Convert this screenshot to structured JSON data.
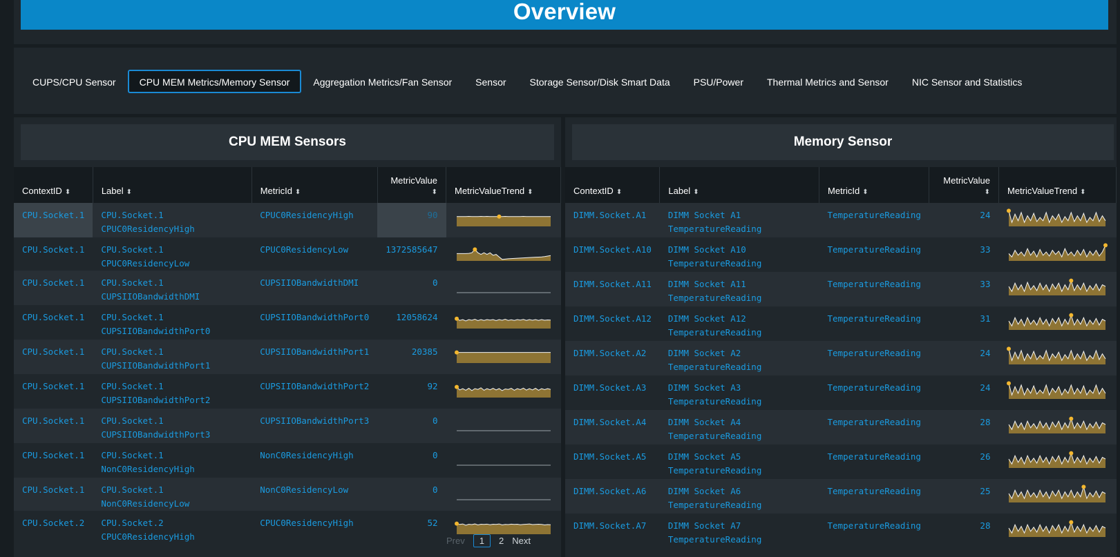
{
  "banner": {
    "title": "Overview"
  },
  "tabs": [
    {
      "label": "CUPS/CPU Sensor",
      "active": false
    },
    {
      "label": "CPU MEM Metrics/Memory Sensor",
      "active": true
    },
    {
      "label": "Aggregation Metrics/Fan Sensor",
      "active": false
    },
    {
      "label": "Sensor",
      "active": false
    },
    {
      "label": "Storage Sensor/Disk Smart Data",
      "active": false
    },
    {
      "label": "PSU/Power",
      "active": false
    },
    {
      "label": "Thermal Metrics and Sensor",
      "active": false
    },
    {
      "label": "NIC Sensor and Statistics",
      "active": false
    }
  ],
  "colors": {
    "accent": "#0a87c8",
    "link": "#1a9be0",
    "spark_fill": "#8e7434",
    "spark_marker": "#f3b72f"
  },
  "left_panel": {
    "title": "CPU MEM Sensors",
    "columns": [
      "ContextID",
      "Label",
      "MetricId",
      "MetricValue",
      "MetricValueTrend"
    ],
    "rows": [
      {
        "context": "CPU.Socket.1",
        "label_1": "CPU.Socket.1",
        "label_2": "CPUC0ResidencyHigh",
        "metric": "CPUC0ResidencyHigh",
        "value": "90",
        "trend": [
          0.55,
          0.55,
          0.55,
          0.55,
          0.56,
          0.55,
          0.55,
          0.55,
          0.56,
          0.55,
          0.56,
          0.55,
          0.55,
          0.55,
          0.55,
          0.55,
          0.56,
          0.55,
          0.55,
          0.55,
          0.55,
          0.55,
          0.56,
          0.55,
          0.55,
          0.55,
          0.55,
          0.55,
          0.55,
          0.55,
          0.55,
          0.55
        ],
        "marker": 14
      },
      {
        "context": "CPU.Socket.1",
        "label_1": "CPU.Socket.1 CPUC0ResidencyLow",
        "label_2": "",
        "metric": "CPUC0ResidencyLow",
        "value": "1372585647",
        "trend": [
          0.4,
          0.4,
          0.4,
          0.4,
          0.41,
          0.45,
          0.65,
          0.45,
          0.35,
          0.45,
          0.35,
          0.45,
          0.3,
          0.35,
          0.2,
          0.05,
          0.07,
          0.09,
          0.1,
          0.11,
          0.12,
          0.13,
          0.14,
          0.15,
          0.16,
          0.17,
          0.18,
          0.19,
          0.2,
          0.22,
          0.25,
          0.28
        ],
        "marker": 6
      },
      {
        "context": "CPU.Socket.1",
        "label_1": "CPU.Socket.1",
        "label_2": "CUPSIIOBandwidthDMI",
        "metric": "CUPSIIOBandwidthDMI",
        "value": "0",
        "trend": [
          0,
          0,
          0,
          0,
          0,
          0,
          0,
          0,
          0,
          0,
          0,
          0,
          0,
          0,
          0,
          0
        ],
        "marker": -1
      },
      {
        "context": "CPU.Socket.1",
        "label_1": "CPU.Socket.1",
        "label_2": "CUPSIIOBandwidthPort0",
        "metric": "CUPSIIOBandwidthPort0",
        "value": "12058624",
        "trend": [
          0.55,
          0.45,
          0.5,
          0.42,
          0.5,
          0.46,
          0.52,
          0.44,
          0.5,
          0.45,
          0.5,
          0.47,
          0.5,
          0.44,
          0.5,
          0.46,
          0.52,
          0.45,
          0.49,
          0.45,
          0.5,
          0.47,
          0.51,
          0.45,
          0.5,
          0.46,
          0.5,
          0.45,
          0.5,
          0.46,
          0.48,
          0.47
        ],
        "marker": 0
      },
      {
        "context": "CPU.Socket.1",
        "label_1": "CPU.Socket.1",
        "label_2": "CUPSIIOBandwidthPort1",
        "metric": "CUPSIIOBandwidthPort1",
        "value": "20385",
        "trend": [
          0.6,
          0.6,
          0.6,
          0.6,
          0.6,
          0.6,
          0.6,
          0.6,
          0.6,
          0.6,
          0.6,
          0.6,
          0.6,
          0.6,
          0.6,
          0.6,
          0.6,
          0.6,
          0.6,
          0.6,
          0.6,
          0.6,
          0.6,
          0.6,
          0.6,
          0.6,
          0.6,
          0.6,
          0.6,
          0.6,
          0.6,
          0.6
        ],
        "marker": 0
      },
      {
        "context": "CPU.Socket.1",
        "label_1": "CPU.Socket.1",
        "label_2": "CUPSIIOBandwidthPort2",
        "metric": "CUPSIIOBandwidthPort2",
        "value": "92",
        "trend": [
          0.6,
          0.42,
          0.5,
          0.4,
          0.52,
          0.38,
          0.5,
          0.45,
          0.55,
          0.4,
          0.5,
          0.43,
          0.52,
          0.42,
          0.5,
          0.38,
          0.48,
          0.45,
          0.52,
          0.4,
          0.5,
          0.44,
          0.53,
          0.41,
          0.5,
          0.42,
          0.52,
          0.4,
          0.5,
          0.44,
          0.5,
          0.45
        ],
        "marker": 0
      },
      {
        "context": "CPU.Socket.1",
        "label_1": "CPU.Socket.1",
        "label_2": "CUPSIIOBandwidthPort3",
        "metric": "CUPSIIOBandwidthPort3",
        "value": "0",
        "trend": [
          0,
          0,
          0,
          0,
          0,
          0,
          0,
          0,
          0,
          0,
          0,
          0,
          0,
          0,
          0,
          0
        ],
        "marker": -1
      },
      {
        "context": "CPU.Socket.1",
        "label_1": "CPU.Socket.1",
        "label_2": "NonC0ResidencyHigh",
        "metric": "NonC0ResidencyHigh",
        "value": "0",
        "trend": [
          0,
          0,
          0,
          0,
          0,
          0,
          0,
          0,
          0,
          0,
          0,
          0,
          0,
          0,
          0,
          0
        ],
        "marker": -1
      },
      {
        "context": "CPU.Socket.1",
        "label_1": "CPU.Socket.1 NonC0ResidencyLow",
        "label_2": "",
        "metric": "NonC0ResidencyLow",
        "value": "0",
        "trend": [
          0,
          0,
          0,
          0,
          0,
          0,
          0,
          0,
          0,
          0,
          0,
          0,
          0,
          0,
          0,
          0
        ],
        "marker": -1
      },
      {
        "context": "CPU.Socket.2",
        "label_1": "CPU.Socket.2",
        "label_2": "CPUC0ResidencyHigh",
        "metric": "CPUC0ResidencyHigh",
        "value": "52",
        "trend": [
          0.6,
          0.55,
          0.58,
          0.5,
          0.56,
          0.54,
          0.58,
          0.52,
          0.56,
          0.55,
          0.57,
          0.53,
          0.56,
          0.55,
          0.58,
          0.52,
          0.55,
          0.54,
          0.57,
          0.55,
          0.56,
          0.53,
          0.55,
          0.56,
          0.58,
          0.54,
          0.55,
          0.56,
          0.55,
          0.52,
          0.54,
          0.53
        ],
        "marker": 0
      }
    ],
    "pager": {
      "prev": "Prev",
      "pages": [
        "1",
        "2"
      ],
      "next": "Next"
    }
  },
  "right_panel": {
    "title": "Memory Sensor",
    "columns": [
      "ContextID",
      "Label",
      "MetricId",
      "MetricValue",
      "MetricValueTrend"
    ],
    "rows": [
      {
        "context": "DIMM.Socket.A1",
        "label_1": "DIMM Socket A1",
        "label_2": "TemperatureReading",
        "metric": "TemperatureReading",
        "value": "24",
        "trend": [
          0.9,
          0.2,
          0.7,
          0.3,
          0.8,
          0.2,
          0.6,
          0.3,
          0.75,
          0.25,
          0.5,
          0.3,
          0.8,
          0.2,
          0.6,
          0.35,
          0.7,
          0.2,
          0.55,
          0.3,
          0.8,
          0.25,
          0.6,
          0.3,
          0.75,
          0.2,
          0.5,
          0.3,
          0.8,
          0.25,
          0.6,
          0.3
        ],
        "marker": 0
      },
      {
        "context": "DIMM.Socket.A10",
        "label_1": "DIMM Socket A10",
        "label_2": "TemperatureReading",
        "metric": "TemperatureReading",
        "value": "33",
        "trend": [
          0.4,
          0.2,
          0.6,
          0.3,
          0.5,
          0.25,
          0.7,
          0.3,
          0.55,
          0.2,
          0.65,
          0.3,
          0.5,
          0.25,
          0.6,
          0.35,
          0.55,
          0.2,
          0.7,
          0.3,
          0.5,
          0.25,
          0.6,
          0.3,
          0.65,
          0.2,
          0.55,
          0.3,
          0.6,
          0.25,
          0.5,
          0.9
        ],
        "marker": 31
      },
      {
        "context": "DIMM.Socket.A11",
        "label_1": "DIMM Socket A11",
        "label_2": "TemperatureReading",
        "metric": "TemperatureReading",
        "value": "33",
        "trend": [
          0.5,
          0.2,
          0.7,
          0.3,
          0.6,
          0.2,
          0.75,
          0.3,
          0.55,
          0.25,
          0.7,
          0.3,
          0.6,
          0.2,
          0.65,
          0.35,
          0.7,
          0.2,
          0.6,
          0.3,
          0.85,
          0.25,
          0.6,
          0.3,
          0.7,
          0.2,
          0.55,
          0.3,
          0.65,
          0.25,
          0.6,
          0.5
        ],
        "marker": 20
      },
      {
        "context": "DIMM.Socket.A12",
        "label_1": "DIMM Socket A12",
        "label_2": "TemperatureReading",
        "metric": "TemperatureReading",
        "value": "31",
        "trend": [
          0.5,
          0.2,
          0.7,
          0.3,
          0.6,
          0.2,
          0.7,
          0.3,
          0.55,
          0.25,
          0.7,
          0.3,
          0.6,
          0.2,
          0.65,
          0.35,
          0.7,
          0.2,
          0.6,
          0.3,
          0.85,
          0.25,
          0.6,
          0.3,
          0.7,
          0.2,
          0.55,
          0.3,
          0.65,
          0.25,
          0.6,
          0.5
        ],
        "marker": 20
      },
      {
        "context": "DIMM.Socket.A2",
        "label_1": "DIMM Socket A2",
        "label_2": "TemperatureReading",
        "metric": "TemperatureReading",
        "value": "24",
        "trend": [
          0.9,
          0.2,
          0.7,
          0.3,
          0.8,
          0.2,
          0.6,
          0.3,
          0.75,
          0.25,
          0.5,
          0.3,
          0.8,
          0.2,
          0.6,
          0.35,
          0.7,
          0.2,
          0.55,
          0.3,
          0.8,
          0.25,
          0.6,
          0.3,
          0.75,
          0.2,
          0.5,
          0.3,
          0.8,
          0.25,
          0.6,
          0.3
        ],
        "marker": 0
      },
      {
        "context": "DIMM.Socket.A3",
        "label_1": "DIMM Socket A3",
        "label_2": "TemperatureReading",
        "metric": "TemperatureReading",
        "value": "24",
        "trend": [
          0.9,
          0.2,
          0.7,
          0.3,
          0.8,
          0.2,
          0.6,
          0.3,
          0.75,
          0.25,
          0.5,
          0.3,
          0.8,
          0.2,
          0.6,
          0.35,
          0.7,
          0.2,
          0.55,
          0.3,
          0.8,
          0.25,
          0.6,
          0.3,
          0.75,
          0.2,
          0.5,
          0.3,
          0.8,
          0.25,
          0.6,
          0.3
        ],
        "marker": 0
      },
      {
        "context": "DIMM.Socket.A4",
        "label_1": "DIMM Socket A4",
        "label_2": "TemperatureReading",
        "metric": "TemperatureReading",
        "value": "28",
        "trend": [
          0.5,
          0.2,
          0.7,
          0.3,
          0.6,
          0.2,
          0.7,
          0.3,
          0.55,
          0.25,
          0.7,
          0.3,
          0.6,
          0.2,
          0.65,
          0.35,
          0.7,
          0.2,
          0.6,
          0.3,
          0.85,
          0.25,
          0.6,
          0.3,
          0.7,
          0.2,
          0.55,
          0.3,
          0.65,
          0.25,
          0.6,
          0.5
        ],
        "marker": 20
      },
      {
        "context": "DIMM.Socket.A5",
        "label_1": "DIMM Socket A5",
        "label_2": "TemperatureReading",
        "metric": "TemperatureReading",
        "value": "26",
        "trend": [
          0.5,
          0.2,
          0.7,
          0.3,
          0.6,
          0.2,
          0.7,
          0.3,
          0.55,
          0.25,
          0.7,
          0.3,
          0.6,
          0.2,
          0.65,
          0.35,
          0.7,
          0.2,
          0.6,
          0.3,
          0.85,
          0.25,
          0.6,
          0.3,
          0.7,
          0.2,
          0.55,
          0.3,
          0.65,
          0.25,
          0.6,
          0.5
        ],
        "marker": 20
      },
      {
        "context": "DIMM.Socket.A6",
        "label_1": "DIMM Socket A6",
        "label_2": "TemperatureReading",
        "metric": "TemperatureReading",
        "value": "25",
        "trend": [
          0.5,
          0.2,
          0.7,
          0.3,
          0.6,
          0.2,
          0.7,
          0.3,
          0.55,
          0.25,
          0.7,
          0.3,
          0.6,
          0.2,
          0.65,
          0.35,
          0.7,
          0.2,
          0.6,
          0.3,
          0.7,
          0.25,
          0.6,
          0.3,
          0.9,
          0.2,
          0.55,
          0.3,
          0.65,
          0.25,
          0.6,
          0.5
        ],
        "marker": 24
      },
      {
        "context": "DIMM.Socket.A7",
        "label_1": "DIMM Socket A7",
        "label_2": "TemperatureReading",
        "metric": "TemperatureReading",
        "value": "28",
        "trend": [
          0.5,
          0.2,
          0.7,
          0.3,
          0.6,
          0.2,
          0.7,
          0.3,
          0.55,
          0.25,
          0.7,
          0.3,
          0.6,
          0.2,
          0.65,
          0.35,
          0.7,
          0.2,
          0.6,
          0.3,
          0.85,
          0.25,
          0.6,
          0.3,
          0.7,
          0.2,
          0.55,
          0.3,
          0.65,
          0.25,
          0.6,
          0.5
        ],
        "marker": 20
      }
    ]
  }
}
